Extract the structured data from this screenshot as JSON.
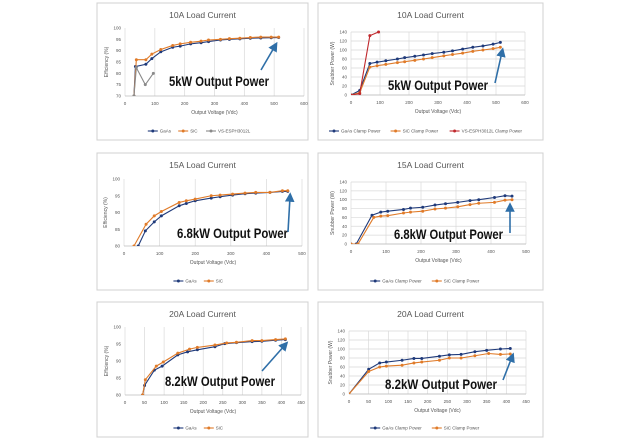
{
  "colors": {
    "gaas": "#1f3a7a",
    "sic": "#e07b29",
    "vs_eff": "#8a8a8a",
    "vs_power": "#c0282d",
    "arrow": "#2f6fa8",
    "grid": "#d9d9d9"
  },
  "chart_data": [
    {
      "type": "line",
      "title": "10A Load Current",
      "xlabel": "Output Voltage (Vdc)",
      "ylabel": "Efficiency (%)",
      "xlim": [
        0,
        600
      ],
      "xticks": [
        0,
        100,
        200,
        300,
        400,
        500,
        600
      ],
      "ylim": [
        70,
        100
      ],
      "yticks": [
        70,
        75,
        80,
        85,
        90,
        95,
        100
      ],
      "grid": "vertical",
      "legend": "bottom",
      "annotation": "5kW Output Power",
      "series": [
        {
          "name": "GaAs",
          "color": "#1f3a7a",
          "points": [
            [
              30,
              70
            ],
            [
              35,
              83
            ],
            [
              70,
              84
            ],
            [
              90,
              86.5
            ],
            [
              120,
              89.5
            ],
            [
              160,
              91.5
            ],
            [
              185,
              92
            ],
            [
              220,
              93
            ],
            [
              255,
              93.5
            ],
            [
              280,
              94
            ],
            [
              320,
              94.7
            ],
            [
              350,
              95
            ],
            [
              385,
              95.2
            ],
            [
              420,
              95.5
            ],
            [
              455,
              95.6
            ],
            [
              490,
              95.7
            ],
            [
              515,
              95.8
            ]
          ]
        },
        {
          "name": "SiC",
          "color": "#e07b29",
          "points": [
            [
              30,
              70
            ],
            [
              38,
              86
            ],
            [
              70,
              86
            ],
            [
              90,
              88.5
            ],
            [
              120,
              90.5
            ],
            [
              160,
              92.3
            ],
            [
              185,
              93
            ],
            [
              220,
              93.7
            ],
            [
              255,
              94.2
            ],
            [
              280,
              94.7
            ],
            [
              320,
              95
            ],
            [
              350,
              95.3
            ],
            [
              385,
              95.5
            ],
            [
              420,
              95.8
            ],
            [
              455,
              96
            ],
            [
              490,
              96
            ],
            [
              515,
              96
            ]
          ]
        },
        {
          "name": "VS-ESPH3012L",
          "color": "#8a8a8a",
          "points": [
            [
              30,
              70
            ],
            [
              38,
              82.5
            ],
            [
              68,
              75
            ],
            [
              95,
              80
            ]
          ]
        }
      ]
    },
    {
      "type": "line",
      "title": "10A Load Current",
      "xlabel": "Output Voltage (Vdc)",
      "ylabel": "Snubber Power (W)",
      "xlim": [
        0,
        600
      ],
      "xticks": [
        0,
        100,
        200,
        300,
        400,
        500,
        600
      ],
      "ylim": [
        0,
        140
      ],
      "yticks": [
        0,
        20,
        40,
        60,
        80,
        100,
        120,
        140
      ],
      "grid": "both",
      "legend": "bottom",
      "annotation": "5kW Output Power",
      "series": [
        {
          "name": "GaAs Clamp Power",
          "color": "#1f3a7a",
          "points": [
            [
              0,
              0
            ],
            [
              30,
              10
            ],
            [
              65,
              70
            ],
            [
              90,
              73
            ],
            [
              120,
              76
            ],
            [
              160,
              80
            ],
            [
              185,
              83
            ],
            [
              220,
              86
            ],
            [
              250,
              89
            ],
            [
              280,
              92
            ],
            [
              320,
              95
            ],
            [
              350,
              98
            ],
            [
              385,
              102
            ],
            [
              420,
              106
            ],
            [
              455,
              109
            ],
            [
              490,
              113
            ],
            [
              515,
              117
            ]
          ]
        },
        {
          "name": "SiC Clamp Power",
          "color": "#e07b29",
          "points": [
            [
              0,
              0
            ],
            [
              30,
              5
            ],
            [
              65,
              62
            ],
            [
              90,
              65
            ],
            [
              120,
              68
            ],
            [
              160,
              72
            ],
            [
              185,
              74
            ],
            [
              220,
              77
            ],
            [
              250,
              80
            ],
            [
              280,
              83
            ],
            [
              320,
              87
            ],
            [
              350,
              90
            ],
            [
              385,
              93
            ],
            [
              420,
              97
            ],
            [
              455,
              100
            ],
            [
              490,
              103
            ],
            [
              515,
              106
            ]
          ]
        },
        {
          "name": "VS-ESPH3012L Clamp Power",
          "color": "#c0282d",
          "points": [
            [
              0,
              0
            ],
            [
              30,
              3
            ],
            [
              65,
              132
            ],
            [
              95,
              140
            ]
          ]
        }
      ]
    },
    {
      "type": "line",
      "title": "15A Load Current",
      "xlabel": "Output Voltage (Vdc)",
      "ylabel": "Efficiency (%)",
      "xlim": [
        0,
        500
      ],
      "xticks": [
        0,
        100,
        200,
        300,
        400,
        500
      ],
      "ylim": [
        80,
        100
      ],
      "yticks": [
        80,
        85,
        90,
        95,
        100
      ],
      "grid": "vertical",
      "legend": "bottom",
      "annotation": "6.8kW Output Power",
      "series": [
        {
          "name": "GaAs",
          "color": "#1f3a7a",
          "points": [
            [
              40,
              80
            ],
            [
              60,
              84.5
            ],
            [
              85,
              87.2
            ],
            [
              105,
              89
            ],
            [
              155,
              92
            ],
            [
              175,
              92.7
            ],
            [
              200,
              93.5
            ],
            [
              245,
              94.3
            ],
            [
              270,
              94.7
            ],
            [
              305,
              95.2
            ],
            [
              340,
              95.6
            ],
            [
              370,
              95.8
            ],
            [
              410,
              96
            ],
            [
              445,
              96.3
            ],
            [
              460,
              96.3
            ]
          ]
        },
        {
          "name": "SiC",
          "color": "#e07b29",
          "points": [
            [
              28,
              80
            ],
            [
              62,
              86.5
            ],
            [
              85,
              89
            ],
            [
              105,
              90.3
            ],
            [
              155,
              93
            ],
            [
              175,
              93.5
            ],
            [
              200,
              94
            ],
            [
              245,
              95
            ],
            [
              270,
              95.2
            ],
            [
              305,
              95.5
            ],
            [
              340,
              95.8
            ],
            [
              370,
              96
            ],
            [
              410,
              96
            ],
            [
              445,
              96.5
            ],
            [
              460,
              96.5
            ]
          ]
        }
      ]
    },
    {
      "type": "line",
      "title": "15A Load Current",
      "xlabel": "Output Voltage (Vdc)",
      "ylabel": "Snubber Power (W)",
      "xlim": [
        0,
        500
      ],
      "xticks": [
        0,
        100,
        200,
        300,
        400,
        500
      ],
      "ylim": [
        0,
        140
      ],
      "yticks": [
        0,
        20,
        40,
        60,
        80,
        100,
        120,
        140
      ],
      "grid": "both",
      "legend": "bottom",
      "annotation": "6.8kW Output Power",
      "series": [
        {
          "name": "GaAs Clamp Power",
          "color": "#1f3a7a",
          "points": [
            [
              0,
              0
            ],
            [
              15,
              0
            ],
            [
              60,
              65
            ],
            [
              85,
              72
            ],
            [
              105,
              74
            ],
            [
              150,
              78
            ],
            [
              170,
              81
            ],
            [
              205,
              83
            ],
            [
              240,
              88
            ],
            [
              270,
              91
            ],
            [
              305,
              94
            ],
            [
              340,
              98
            ],
            [
              365,
              100
            ],
            [
              410,
              105
            ],
            [
              440,
              109
            ],
            [
              460,
              108
            ]
          ]
        },
        {
          "name": "SiC Clamp Power",
          "color": "#e07b29",
          "points": [
            [
              0,
              0
            ],
            [
              20,
              0
            ],
            [
              65,
              60
            ],
            [
              85,
              63
            ],
            [
              105,
              64
            ],
            [
              150,
              70
            ],
            [
              170,
              72
            ],
            [
              205,
              74
            ],
            [
              240,
              79
            ],
            [
              270,
              81
            ],
            [
              305,
              84
            ],
            [
              340,
              89
            ],
            [
              365,
              92
            ],
            [
              410,
              94
            ],
            [
              440,
              99
            ],
            [
              460,
              100
            ]
          ]
        }
      ]
    },
    {
      "type": "line",
      "title": "20A Load Current",
      "xlabel": "Output Voltage (Vdc)",
      "ylabel": "Efficiency (%)",
      "xlim": [
        0,
        450
      ],
      "xticks": [
        0,
        50,
        100,
        150,
        200,
        250,
        300,
        350,
        400,
        450
      ],
      "ylim": [
        80,
        100
      ],
      "yticks": [
        80,
        85,
        90,
        95,
        100
      ],
      "grid": "vertical",
      "legend": "bottom",
      "annotation": "8.2kW Output Power",
      "series": [
        {
          "name": "GaAs",
          "color": "#1f3a7a",
          "points": [
            [
              45,
              80
            ],
            [
              50,
              82.8
            ],
            [
              75,
              87.3
            ],
            [
              95,
              88.5
            ],
            [
              135,
              91.8
            ],
            [
              160,
              92.7
            ],
            [
              185,
              93.3
            ],
            [
              230,
              94.2
            ],
            [
              255,
              95.1
            ],
            [
              285,
              95.4
            ],
            [
              325,
              95.7
            ],
            [
              350,
              95.8
            ],
            [
              385,
              96.1
            ],
            [
              410,
              96.3
            ]
          ]
        },
        {
          "name": "SiC",
          "color": "#e07b29",
          "points": [
            [
              45,
              80
            ],
            [
              52,
              84.5
            ],
            [
              80,
              88.5
            ],
            [
              98,
              89.7
            ],
            [
              135,
              92.3
            ],
            [
              165,
              93.5
            ],
            [
              185,
              94
            ],
            [
              230,
              94.7
            ],
            [
              260,
              95.3
            ],
            [
              285,
              95.5
            ],
            [
              325,
              96
            ],
            [
              350,
              96
            ],
            [
              385,
              96.3
            ],
            [
              410,
              96.5
            ]
          ]
        }
      ]
    },
    {
      "type": "line",
      "title": "20A Load Current",
      "xlabel": "Output Voltage (Vdc)",
      "ylabel": "Snubber Power (W)",
      "xlim": [
        0,
        450
      ],
      "xticks": [
        0,
        50,
        100,
        150,
        200,
        250,
        300,
        350,
        400,
        450
      ],
      "ylim": [
        0,
        140
      ],
      "yticks": [
        0,
        20,
        40,
        60,
        80,
        100,
        120,
        140
      ],
      "grid": "both",
      "legend": "bottom",
      "annotation": "8.2kW Output Power",
      "series": [
        {
          "name": "GaAs Clamp Power",
          "color": "#1f3a7a",
          "points": [
            [
              0,
              0
            ],
            [
              50,
              55
            ],
            [
              78,
              69
            ],
            [
              95,
              71
            ],
            [
              135,
              75
            ],
            [
              165,
              79
            ],
            [
              185,
              79
            ],
            [
              230,
              84
            ],
            [
              255,
              87
            ],
            [
              285,
              88
            ],
            [
              320,
              94
            ],
            [
              350,
              97
            ],
            [
              385,
              100
            ],
            [
              410,
              101
            ]
          ]
        },
        {
          "name": "SiC Clamp Power",
          "color": "#e07b29",
          "points": [
            [
              0,
              0
            ],
            [
              50,
              50
            ],
            [
              78,
              60
            ],
            [
              95,
              62
            ],
            [
              135,
              64
            ],
            [
              165,
              69
            ],
            [
              185,
              71
            ],
            [
              230,
              75
            ],
            [
              255,
              80
            ],
            [
              285,
              80
            ],
            [
              320,
              85
            ],
            [
              355,
              90
            ],
            [
              385,
              88
            ],
            [
              410,
              89
            ]
          ]
        }
      ]
    }
  ]
}
